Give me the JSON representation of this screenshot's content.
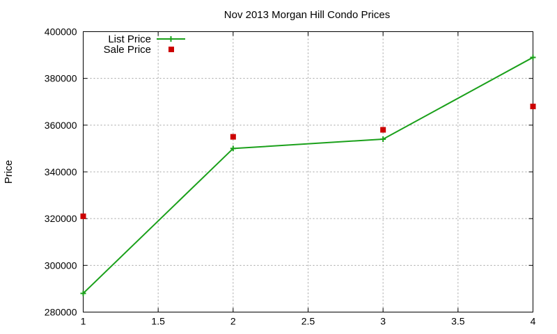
{
  "chart_data": {
    "type": "line",
    "title": "Nov 2013 Morgan Hill Condo Prices",
    "xlabel": "",
    "ylabel": "Price",
    "xlim": [
      1,
      4
    ],
    "ylim": [
      280000,
      400000
    ],
    "x_ticks": [
      "1",
      "1.5",
      "2",
      "2.5",
      "3",
      "3.5",
      "4"
    ],
    "x_tick_values": [
      1,
      1.5,
      2,
      2.5,
      3,
      3.5,
      4
    ],
    "y_ticks": [
      "280000",
      "300000",
      "320000",
      "340000",
      "360000",
      "380000",
      "400000"
    ],
    "y_tick_values": [
      280000,
      300000,
      320000,
      340000,
      360000,
      380000,
      400000
    ],
    "grid": true,
    "legend_position": "top-left",
    "series": [
      {
        "name": "List Price",
        "style": "linespoints",
        "marker": "plus",
        "color": "#1aa01a",
        "x": [
          1,
          2,
          3,
          4
        ],
        "values": [
          288000,
          350000,
          354000,
          389000
        ]
      },
      {
        "name": "Sale Price",
        "style": "points",
        "marker": "square",
        "color": "#cc0000",
        "x": [
          1,
          2,
          3,
          4
        ],
        "values": [
          321000,
          355000,
          358000,
          368000
        ]
      }
    ]
  }
}
